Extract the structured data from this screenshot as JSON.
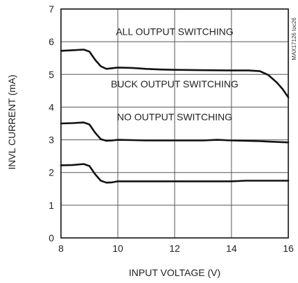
{
  "chart_data": {
    "type": "line",
    "xlabel": "INPUT VOLTAGE (V)",
    "ylabel": "INVL CURRENT (mA)",
    "xlim": [
      8,
      16
    ],
    "ylim": [
      0,
      7
    ],
    "xticks": [
      8,
      10,
      12,
      14,
      16
    ],
    "yticks": [
      0,
      1,
      2,
      3,
      4,
      5,
      6,
      7
    ],
    "grid": true,
    "side_id": "MAX17126 toc26",
    "annotations": [
      {
        "text": "ALL OUTPUT SWITCHING",
        "x": 12.0,
        "y": 6.2
      },
      {
        "text": "BUCK OUTPUT SWITCHING",
        "x": 12.0,
        "y": 4.6
      },
      {
        "text": "NO OUTPUT SWITCHING",
        "x": 12.0,
        "y": 3.6
      }
    ],
    "series": [
      {
        "name": "ALL OUTPUT SWITCHING",
        "x": [
          8.0,
          8.4,
          8.8,
          9.0,
          9.2,
          9.4,
          9.6,
          9.8,
          10.0,
          10.5,
          11.0,
          11.5,
          12.0,
          13.0,
          14.0,
          14.6,
          15.0,
          15.3,
          15.6,
          15.8,
          16.0
        ],
        "y": [
          5.72,
          5.74,
          5.76,
          5.7,
          5.45,
          5.25,
          5.17,
          5.19,
          5.21,
          5.2,
          5.17,
          5.15,
          5.14,
          5.13,
          5.12,
          5.12,
          5.1,
          4.98,
          4.75,
          4.55,
          4.3
        ]
      },
      {
        "name": "BUCK OUTPUT SWITCHING",
        "x": [
          8.0,
          8.4,
          8.8,
          9.0,
          9.2,
          9.4,
          9.6,
          9.8,
          10.0,
          10.5,
          11.0,
          12.0,
          13.0,
          13.5,
          14.0,
          15.0,
          16.0
        ],
        "y": [
          3.5,
          3.51,
          3.53,
          3.47,
          3.22,
          3.02,
          2.97,
          2.98,
          3.0,
          2.99,
          2.98,
          2.98,
          2.98,
          3.0,
          2.98,
          2.96,
          2.92
        ]
      },
      {
        "name": "NO OUTPUT SWITCHING",
        "x": [
          8.0,
          8.4,
          8.8,
          9.0,
          9.2,
          9.4,
          9.6,
          9.8,
          10.0,
          11.0,
          12.0,
          13.0,
          14.0,
          14.5,
          15.0,
          16.0
        ],
        "y": [
          2.22,
          2.23,
          2.26,
          2.2,
          1.95,
          1.75,
          1.69,
          1.7,
          1.73,
          1.73,
          1.73,
          1.73,
          1.73,
          1.75,
          1.75,
          1.75
        ]
      }
    ]
  }
}
